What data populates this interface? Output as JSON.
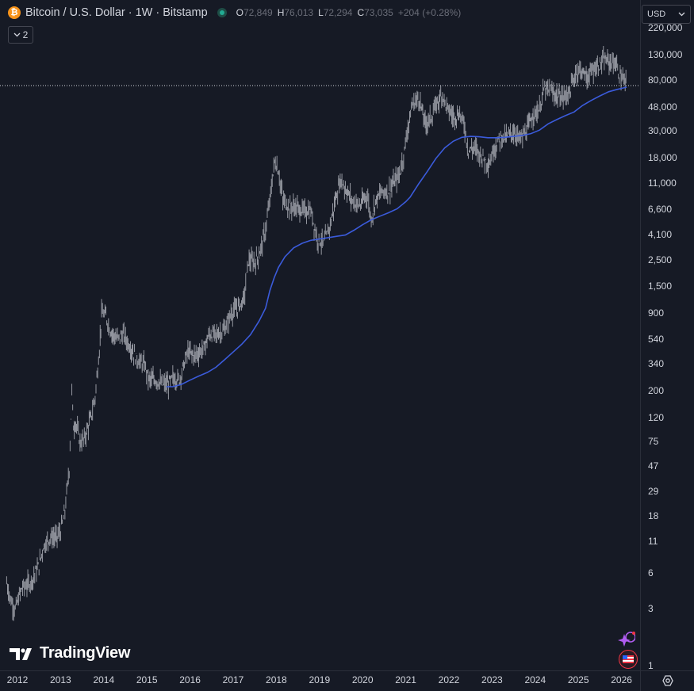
{
  "symbol": {
    "title": "Bitcoin / U.S. Dollar · 1W · Bitstamp",
    "icon": "bitcoin-icon",
    "open_label": "O",
    "open": "72,849",
    "high_label": "H",
    "high": "76,013",
    "low_label": "L",
    "low": "72,294",
    "close_label": "C",
    "close": "73,035",
    "change": "+204 (+0.28%)"
  },
  "indicators_toggle": {
    "count": "2",
    "icon": "chevron-down-icon"
  },
  "currency": {
    "value": "USD",
    "icon": "chevron-down-icon"
  },
  "branding": {
    "logo_text": "TradingView"
  },
  "colors": {
    "background": "#161a25",
    "candles": "#9598a1",
    "moving_average": "#3b5bdb",
    "last_price_line": "#d1d4dc"
  },
  "chart_data": {
    "type": "line",
    "yscale": "log",
    "ylim": [
      1,
      220000
    ],
    "x_ticks": [
      "2012",
      "2013",
      "2014",
      "2015",
      "2016",
      "2017",
      "2018",
      "2019",
      "2020",
      "2021",
      "2022",
      "2023",
      "2024",
      "2025",
      "2026"
    ],
    "y_ticks": [
      "220,000",
      "130,000",
      "80,000",
      "48,000",
      "30,000",
      "18,000",
      "11,000",
      "6,600",
      "4,100",
      "2,500",
      "1,500",
      "900",
      "540",
      "340",
      "200",
      "120",
      "75",
      "47",
      "29",
      "18",
      "11",
      "6",
      "3",
      "1"
    ],
    "series": [
      {
        "style": "candles",
        "x": [
          2011.75,
          2011.85,
          2011.95,
          2012.1,
          2012.3,
          2012.5,
          2012.6,
          2012.75,
          2012.9,
          2013.0,
          2013.1,
          2013.2,
          2013.26,
          2013.3,
          2013.35,
          2013.45,
          2013.55,
          2013.7,
          2013.8,
          2013.9,
          2013.95,
          2014.05,
          2014.15,
          2014.3,
          2014.45,
          2014.6,
          2014.75,
          2014.85,
          2014.95,
          2015.05,
          2015.2,
          2015.35,
          2015.5,
          2015.6,
          2015.75,
          2015.85,
          2015.95,
          2016.1,
          2016.3,
          2016.45,
          2016.6,
          2016.8,
          2016.95,
          2017.1,
          2017.25,
          2017.35,
          2017.5,
          2017.6,
          2017.75,
          2017.85,
          2017.96,
          2018.05,
          2018.15,
          2018.3,
          2018.45,
          2018.6,
          2018.8,
          2018.95,
          2019.1,
          2019.25,
          2019.4,
          2019.5,
          2019.6,
          2019.75,
          2019.85,
          2019.95,
          2020.1,
          2020.2,
          2020.3,
          2020.45,
          2020.6,
          2020.75,
          2020.85,
          2020.95,
          2021.05,
          2021.15,
          2021.3,
          2021.45,
          2021.6,
          2021.75,
          2021.85,
          2021.95,
          2022.1,
          2022.25,
          2022.35,
          2022.45,
          2022.6,
          2022.75,
          2022.85,
          2022.95,
          2023.05,
          2023.2,
          2023.35,
          2023.5,
          2023.65,
          2023.8,
          2023.95,
          2024.1,
          2024.2,
          2024.35,
          2024.5,
          2024.65,
          2024.8,
          2024.95,
          2025.05,
          2025.2,
          2025.35,
          2025.5,
          2025.6,
          2025.75,
          2025.85,
          2025.95,
          2026.05,
          2026.12
        ],
        "y": [
          5,
          3.5,
          3,
          4.5,
          5,
          7,
          10,
          12,
          12,
          13.5,
          20,
          45,
          200,
          100,
          110,
          75,
          80,
          120,
          180,
          450,
          900,
          850,
          650,
          550,
          600,
          480,
          380,
          350,
          330,
          250,
          250,
          230,
          230,
          260,
          250,
          330,
          430,
          400,
          450,
          600,
          600,
          650,
          900,
          1000,
          1200,
          2500,
          2400,
          2800,
          4500,
          8000,
          17000,
          14000,
          8000,
          7000,
          7000,
          6500,
          6500,
          3800,
          3500,
          5000,
          9000,
          12000,
          10000,
          8000,
          7500,
          7200,
          9000,
          5500,
          8000,
          9500,
          9500,
          11500,
          13000,
          19000,
          33000,
          50000,
          58000,
          35000,
          40000,
          55000,
          62000,
          48000,
          40000,
          42000,
          35000,
          21000,
          22000,
          19000,
          17000,
          16500,
          22000,
          27000,
          27000,
          30000,
          26000,
          30000,
          42000,
          46000,
          68000,
          65000,
          60000,
          58000,
          65000,
          95000,
          100000,
          85000,
          100000,
          110000,
          118000,
          115000,
          112000,
          90000,
          80000,
          73035
        ]
      },
      {
        "style": "moving-average",
        "x": [
          2015.45,
          2015.6,
          2015.8,
          2016.0,
          2016.2,
          2016.4,
          2016.6,
          2016.8,
          2017.0,
          2017.2,
          2017.4,
          2017.6,
          2017.75,
          2017.85,
          2017.95,
          2018.05,
          2018.2,
          2018.4,
          2018.6,
          2018.8,
          2019.0,
          2019.2,
          2019.4,
          2019.6,
          2019.8,
          2020.0,
          2020.2,
          2020.4,
          2020.6,
          2020.8,
          2021.0,
          2021.1,
          2021.3,
          2021.5,
          2021.7,
          2021.9,
          2022.1,
          2022.3,
          2022.5,
          2022.7,
          2022.9,
          2023.1,
          2023.3,
          2023.5,
          2023.7,
          2023.9,
          2024.1,
          2024.3,
          2024.5,
          2024.7,
          2024.9,
          2025.1,
          2025.3,
          2025.5,
          2025.7,
          2025.9,
          2026.05,
          2026.12
        ],
        "y": [
          220,
          220,
          230,
          250,
          270,
          290,
          320,
          370,
          430,
          500,
          600,
          780,
          1000,
          1400,
          1800,
          2200,
          2700,
          3200,
          3500,
          3700,
          3800,
          3900,
          4000,
          4100,
          4500,
          5000,
          5500,
          5900,
          6300,
          6800,
          7800,
          8500,
          11000,
          14000,
          18000,
          22000,
          25000,
          27000,
          27500,
          27300,
          26800,
          26800,
          27000,
          27500,
          28000,
          29000,
          31000,
          35000,
          38000,
          41000,
          44000,
          50000,
          55000,
          60000,
          65000,
          68000,
          70000,
          71000
        ]
      }
    ],
    "last_price": 73035
  }
}
